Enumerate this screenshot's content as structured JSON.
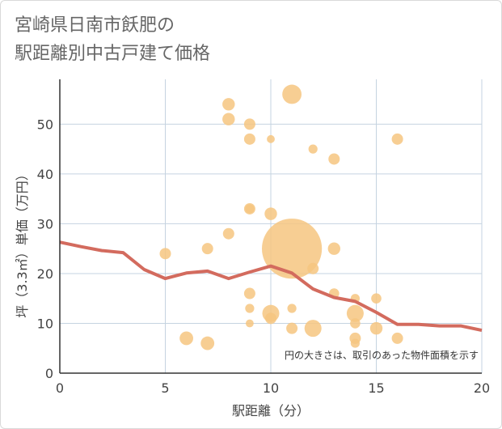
{
  "title_lines": [
    "宮崎県日南市飫肥の",
    "駅距離別中古戸建て価格"
  ],
  "chart_data": {
    "type": "scatter",
    "title": "宮崎県日南市飫肥の駅距離別中古戸建て価格",
    "xlabel": "駅距離（分）",
    "ylabel": "坪（3.3㎡）単価（万円）",
    "xlim": [
      0,
      20
    ],
    "ylim": [
      0,
      59
    ],
    "xticks": [
      0,
      5,
      10,
      15,
      20
    ],
    "yticks": [
      0,
      10,
      20,
      30,
      40,
      50
    ],
    "grid": true,
    "note": "円の大きさは、取引のあった物件面積を示す",
    "points": [
      {
        "x": 5,
        "y": 24,
        "size": 1
      },
      {
        "x": 6,
        "y": 7,
        "size": 1.2
      },
      {
        "x": 7,
        "y": 25,
        "size": 1
      },
      {
        "x": 7,
        "y": 6,
        "size": 1.2
      },
      {
        "x": 8,
        "y": 54,
        "size": 1.1
      },
      {
        "x": 8,
        "y": 51,
        "size": 1.1
      },
      {
        "x": 8,
        "y": 28,
        "size": 1
      },
      {
        "x": 9,
        "y": 50,
        "size": 1
      },
      {
        "x": 9,
        "y": 47,
        "size": 1
      },
      {
        "x": 9,
        "y": 33,
        "size": 1
      },
      {
        "x": 9,
        "y": 33,
        "size": 0.8
      },
      {
        "x": 9,
        "y": 16,
        "size": 1
      },
      {
        "x": 9,
        "y": 13,
        "size": 0.8
      },
      {
        "x": 9,
        "y": 10,
        "size": 0.7
      },
      {
        "x": 10,
        "y": 47,
        "size": 0.7
      },
      {
        "x": 10,
        "y": 32,
        "size": 1.1
      },
      {
        "x": 10,
        "y": 12,
        "size": 1.5
      },
      {
        "x": 10,
        "y": 11,
        "size": 1
      },
      {
        "x": 11,
        "y": 56,
        "size": 1.7
      },
      {
        "x": 11,
        "y": 25,
        "size": 5.3
      },
      {
        "x": 11,
        "y": 13,
        "size": 0.8
      },
      {
        "x": 11,
        "y": 9,
        "size": 1
      },
      {
        "x": 12,
        "y": 45,
        "size": 0.8
      },
      {
        "x": 12,
        "y": 21,
        "size": 1
      },
      {
        "x": 12,
        "y": 9,
        "size": 1.5
      },
      {
        "x": 13,
        "y": 43,
        "size": 1
      },
      {
        "x": 13,
        "y": 25,
        "size": 1.1
      },
      {
        "x": 13,
        "y": 16,
        "size": 0.9
      },
      {
        "x": 14,
        "y": 15,
        "size": 0.8
      },
      {
        "x": 14,
        "y": 12,
        "size": 1.5
      },
      {
        "x": 14,
        "y": 10,
        "size": 0.9
      },
      {
        "x": 14,
        "y": 7,
        "size": 1
      },
      {
        "x": 14,
        "y": 6,
        "size": 0.8
      },
      {
        "x": 15,
        "y": 15,
        "size": 0.9
      },
      {
        "x": 15,
        "y": 9,
        "size": 1.1
      },
      {
        "x": 16,
        "y": 47,
        "size": 1
      },
      {
        "x": 16,
        "y": 7,
        "size": 1
      }
    ],
    "trend_line": {
      "x": [
        0,
        1,
        2,
        3,
        4,
        5,
        6,
        7,
        8,
        9,
        10,
        11,
        12,
        13,
        14,
        15,
        16,
        17,
        18,
        19,
        20
      ],
      "y": [
        26.3,
        25.4,
        24.6,
        24.2,
        20.8,
        19.0,
        20.1,
        20.5,
        19.0,
        20.3,
        21.5,
        20.1,
        16.9,
        15.2,
        14.4,
        12.2,
        9.8,
        9.8,
        9.5,
        9.5,
        8.6
      ]
    },
    "colors": {
      "points": "#f6c580",
      "trend": "#d36b5e",
      "grid": "#c5d3e0",
      "axis": "#333333"
    }
  }
}
